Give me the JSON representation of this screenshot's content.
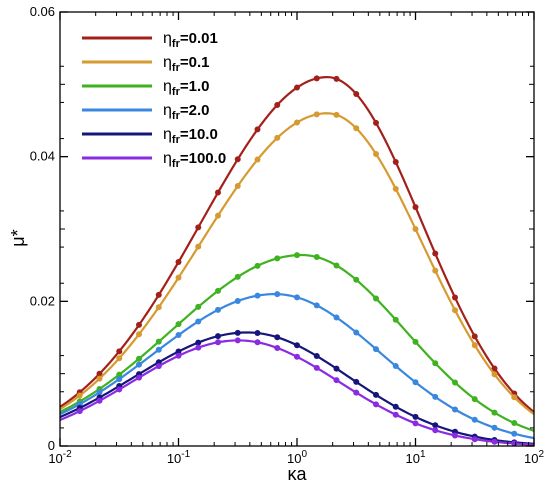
{
  "chart_data": {
    "type": "line",
    "xscale": "log",
    "xlim": [
      0.01,
      100
    ],
    "ylim": [
      0,
      0.06
    ],
    "xlabel": "κa",
    "ylabel": "μ*",
    "grid": false,
    "legend_position": "top-left",
    "x_ticks": [
      {
        "base": "10",
        "exp": "-2"
      },
      {
        "base": "10",
        "exp": "-1"
      },
      {
        "base": "10",
        "exp": "0"
      },
      {
        "base": "10",
        "exp": "1"
      },
      {
        "base": "10",
        "exp": "2"
      }
    ],
    "y_ticks": [
      "0",
      "0.02",
      "0.04",
      "0.06"
    ],
    "legend_symbol": "η",
    "legend_subscript": "fr",
    "series": [
      {
        "name": "0.01",
        "color": "#a3201a",
        "peak_x": 1.8,
        "peak_y": 0.051,
        "y_at_xmin": 0.0054,
        "y_at_xmax": 0.0047
      },
      {
        "name": "0.1",
        "color": "#d69a30",
        "peak_x": 1.8,
        "peak_y": 0.046,
        "y_at_xmin": 0.0051,
        "y_at_xmax": 0.0044
      },
      {
        "name": "1.0",
        "color": "#3fb21f",
        "peak_x": 1.1,
        "peak_y": 0.0264,
        "y_at_xmin": 0.0047,
        "y_at_xmax": 0.0021
      },
      {
        "name": "2.0",
        "color": "#3a87e0",
        "peak_x": 0.65,
        "peak_y": 0.021,
        "y_at_xmin": 0.0044,
        "y_at_xmax": 0.0011
      },
      {
        "name": "10.0",
        "color": "#15157a",
        "peak_x": 0.38,
        "peak_y": 0.0157,
        "y_at_xmin": 0.004,
        "y_at_xmax": 0.0003
      },
      {
        "name": "100.0",
        "color": "#8a2be2",
        "peak_x": 0.32,
        "peak_y": 0.0146,
        "y_at_xmin": 0.0036,
        "y_at_xmax": 0.0002
      }
    ]
  }
}
